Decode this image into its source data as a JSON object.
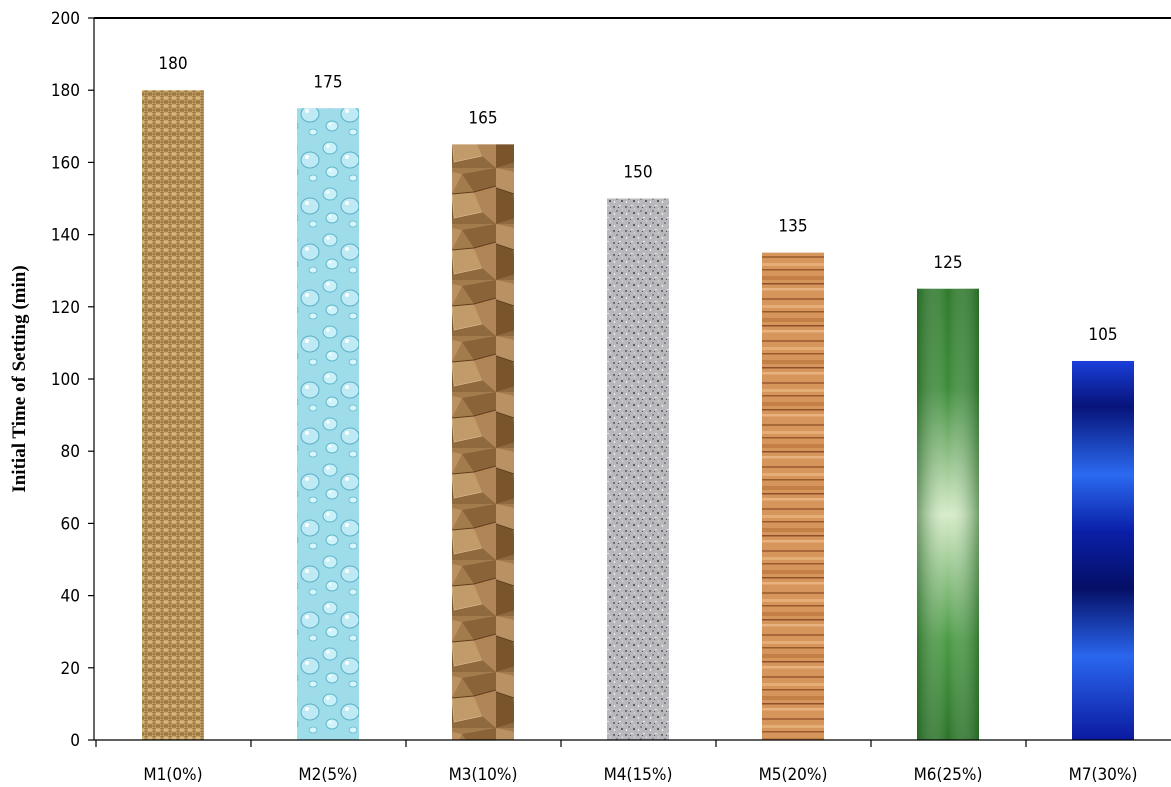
{
  "chart_data": {
    "type": "bar",
    "title": "",
    "xlabel": "",
    "ylabel": "Initial Time  of Setting (min)",
    "categories": [
      "M1(0%)",
      "M2(5%)",
      "M3(10%)",
      "M4(15%)",
      "M5(20%)",
      "M6(25%)",
      "M7(30%)"
    ],
    "values": [
      180,
      175,
      165,
      150,
      135,
      125,
      105
    ],
    "data_labels": [
      "180",
      "175",
      "165",
      "150",
      "135",
      "125",
      "105"
    ],
    "ylim": [
      0,
      200
    ],
    "yticks": [
      0,
      20,
      40,
      60,
      80,
      100,
      120,
      140,
      160,
      180,
      200
    ],
    "grid": false,
    "legend": "none",
    "bar_fills": [
      "burlap-texture",
      "water-droplets-texture",
      "brown-paper-texture",
      "granite-texture",
      "oak-wood-texture",
      "green-gradient",
      "blue-gradient"
    ],
    "bar_colors": [
      "#b58f53",
      "#8fd6e6",
      "#9b7444",
      "#b2b2b6",
      "#cc8a50",
      "#3c8a3a",
      "#1230c8"
    ]
  }
}
